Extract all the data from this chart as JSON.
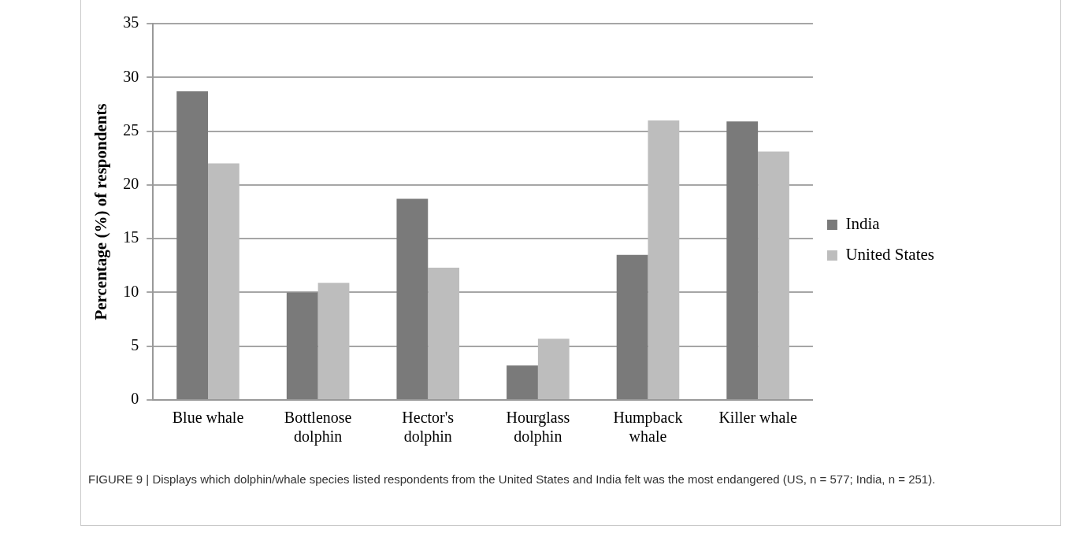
{
  "chart_data": {
    "type": "bar",
    "ylabel": "Percentage (%) of respondents",
    "categories": [
      "Blue whale",
      "Bottlenose dolphin",
      "Hector's dolphin",
      "Hourglass dolphin",
      "Humpback whale",
      "Killer whale"
    ],
    "series": [
      {
        "name": "India",
        "color": "#7a7a7a",
        "values": [
          28.7,
          10.0,
          18.7,
          3.2,
          13.5,
          25.9
        ]
      },
      {
        "name": "United States",
        "color": "#bdbdbd",
        "values": [
          22.0,
          10.9,
          12.3,
          5.7,
          26.0,
          23.1
        ]
      }
    ],
    "ylim": [
      0,
      35
    ],
    "yticks": [
      0,
      5,
      10,
      15,
      20,
      25,
      30,
      35
    ],
    "grid": "y",
    "legend": "right",
    "annotations": [
      "FIGURE 9 | Displays which dolphin/whale species listed respondents from the United States and India felt was the most endangered (US, n = 577; India, n = 251)."
    ]
  }
}
